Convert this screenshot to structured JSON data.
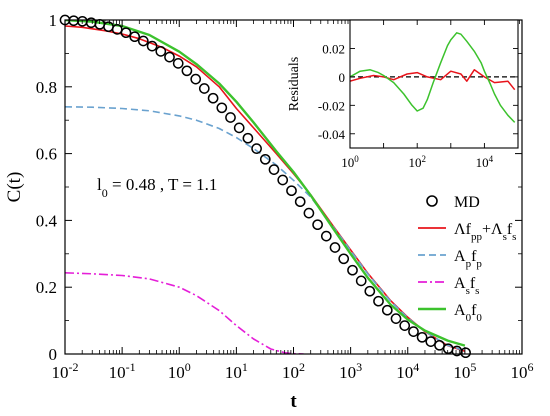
{
  "chart_data": [
    {
      "type": "line",
      "x_scale": "log",
      "xlabel": "t",
      "ylabel": "C(t)",
      "xlim": [
        0.01,
        1000000
      ],
      "ylim": [
        0,
        1
      ],
      "xticks": [
        0.01,
        0.1,
        1,
        10,
        100,
        1000,
        10000,
        100000,
        1000000
      ],
      "xtick_base": [
        "10",
        "10",
        "10",
        "10",
        "10",
        "10",
        "10",
        "10",
        "10"
      ],
      "xtick_exp": [
        "-2",
        "-1",
        "0",
        "1",
        "2",
        "3",
        "4",
        "5",
        "6"
      ],
      "yticks": [
        0,
        0.2,
        0.4,
        0.6,
        0.8,
        1
      ],
      "ytick_labels": [
        "0",
        "0.2",
        "0.4",
        "0.6",
        "0.8",
        "1"
      ],
      "grid": false,
      "legend_position": "right",
      "annotation": {
        "main": "l",
        "sub": "0",
        "rest": " = 0.48 , T = 1.1"
      },
      "series": [
        {
          "key": "md",
          "name": "MD",
          "style": "circles",
          "color": "#000000",
          "x": [
            0.01,
            0.0142,
            0.0202,
            0.0287,
            0.0407,
            0.0578,
            0.0821,
            0.117,
            0.166,
            0.235,
            0.335,
            0.475,
            0.675,
            0.96,
            1.36,
            1.94,
            2.75,
            3.91,
            5.55,
            7.89,
            11.2,
            15.9,
            22.6,
            32.1,
            45.6,
            64.8,
            92.1,
            131,
            186,
            264,
            375,
            533,
            757,
            1080,
            1530,
            2170,
            3080,
            4380,
            6220,
            8840,
            12600,
            17800,
            25300,
            36000,
            51100,
            72600,
            103000
          ],
          "y": [
            1.0,
            0.998,
            0.996,
            0.992,
            0.987,
            0.98,
            0.972,
            0.962,
            0.95,
            0.937,
            0.922,
            0.906,
            0.889,
            0.87,
            0.848,
            0.823,
            0.795,
            0.766,
            0.737,
            0.708,
            0.677,
            0.646,
            0.615,
            0.583,
            0.552,
            0.521,
            0.489,
            0.456,
            0.422,
            0.387,
            0.353,
            0.319,
            0.285,
            0.251,
            0.219,
            0.188,
            0.158,
            0.131,
            0.106,
            0.085,
            0.067,
            0.05,
            0.037,
            0.026,
            0.016,
            0.009,
            0.004
          ]
        },
        {
          "key": "fit",
          "name_parts": [
            [
              "Λ",
              ""
            ],
            [
              "f",
              ""
            ],
            [
              "p",
              "sub"
            ],
            [
              "p",
              "sub"
            ],
            [
              "+Λ",
              ""
            ],
            [
              "s",
              "sub"
            ],
            [
              "f",
              ""
            ],
            [
              "s",
              "sub"
            ]
          ],
          "style": "solid",
          "color": "#e8141b",
          "x": [
            0.01,
            0.02,
            0.05,
            0.1,
            0.2,
            0.5,
            1,
            2,
            5,
            10,
            20,
            50,
            100,
            200,
            500,
            1000,
            2000,
            5000,
            10000,
            20000,
            50000,
            100000
          ],
          "y": [
            0.982,
            0.978,
            0.968,
            0.958,
            0.944,
            0.918,
            0.892,
            0.86,
            0.8,
            0.735,
            0.677,
            0.6,
            0.54,
            0.477,
            0.382,
            0.312,
            0.242,
            0.16,
            0.11,
            0.067,
            0.025,
            0.008
          ]
        },
        {
          "key": "ap",
          "name_parts": [
            [
              "A",
              ""
            ],
            [
              "p",
              "sub"
            ],
            [
              "f",
              ""
            ],
            [
              "p",
              "sub"
            ]
          ],
          "style": "dashed",
          "color": "#6aa2cf",
          "x": [
            0.01,
            0.03,
            0.1,
            0.3,
            1,
            2,
            5,
            10,
            20,
            50,
            100,
            200,
            500,
            1000,
            2000,
            5000,
            10000,
            20000,
            50000,
            100000
          ],
          "y": [
            0.74,
            0.739,
            0.735,
            0.728,
            0.713,
            0.7,
            0.675,
            0.648,
            0.615,
            0.566,
            0.52,
            0.47,
            0.38,
            0.31,
            0.24,
            0.158,
            0.108,
            0.068,
            0.026,
            0.01
          ]
        },
        {
          "key": "as",
          "name_parts": [
            [
              "A",
              ""
            ],
            [
              "s",
              "sub"
            ],
            [
              "f",
              ""
            ],
            [
              "s",
              "sub"
            ]
          ],
          "style": "dashdot",
          "color": "#e51fd8",
          "x": [
            0.01,
            0.03,
            0.1,
            0.3,
            1,
            2,
            5,
            10,
            20,
            40,
            70,
            100,
            150
          ],
          "y": [
            0.243,
            0.24,
            0.235,
            0.225,
            0.2,
            0.175,
            0.13,
            0.085,
            0.045,
            0.015,
            0.004,
            0.001,
            0.0
          ]
        },
        {
          "key": "a0",
          "name_parts": [
            [
              "A",
              ""
            ],
            [
              "0",
              "sub"
            ],
            [
              "f",
              ""
            ],
            [
              "0",
              "sub"
            ]
          ],
          "style": "solid",
          "color": "#3cc22d",
          "x": [
            0.01,
            0.03,
            0.1,
            0.3,
            1,
            2,
            5,
            10,
            20,
            50,
            100,
            200,
            500,
            1000,
            2000,
            5000,
            10000,
            20000,
            50000,
            100000
          ],
          "y": [
            1.0,
            0.995,
            0.982,
            0.955,
            0.905,
            0.868,
            0.81,
            0.755,
            0.693,
            0.607,
            0.545,
            0.475,
            0.375,
            0.3,
            0.228,
            0.148,
            0.103,
            0.07,
            0.04,
            0.025
          ]
        }
      ]
    },
    {
      "type": "line",
      "x_scale": "log",
      "ylabel": "Residuals",
      "xlim": [
        1,
        100000
      ],
      "ylim": [
        -0.05,
        0.04
      ],
      "xticks": [
        1,
        100,
        10000
      ],
      "xtick_base": [
        "10",
        "10",
        "10"
      ],
      "xtick_exp": [
        "0",
        "2",
        "4"
      ],
      "yticks": [
        -0.04,
        -0.02,
        0,
        0.02
      ],
      "ytick_labels": [
        "-0.04",
        "-0.02",
        "0",
        "0.02"
      ],
      "zero_line": true,
      "series": [
        {
          "key": "res_red",
          "color": "#e8141b",
          "style": "solid",
          "x": [
            1,
            2,
            5,
            10,
            20,
            50,
            100,
            200,
            500,
            1000,
            2000,
            3000,
            5000,
            10000,
            20000,
            50000,
            80000
          ],
          "y": [
            -0.003,
            -0.001,
            0.001,
            0.0,
            -0.002,
            0.002,
            0.003,
            0.0,
            -0.002,
            0.004,
            0.002,
            -0.003,
            0.005,
            0.0,
            -0.004,
            -0.003,
            -0.009
          ]
        },
        {
          "key": "res_green",
          "color": "#3cc22d",
          "style": "solid",
          "x": [
            1,
            2,
            4,
            7,
            10,
            20,
            40,
            70,
            100,
            150,
            200,
            300,
            500,
            800,
            1000,
            1500,
            2000,
            3000,
            5000,
            8000,
            10000,
            15000,
            20000,
            30000,
            50000,
            80000
          ],
          "y": [
            0.0,
            0.004,
            0.005,
            0.003,
            0.001,
            -0.004,
            -0.012,
            -0.02,
            -0.024,
            -0.022,
            -0.016,
            -0.004,
            0.01,
            0.022,
            0.026,
            0.031,
            0.03,
            0.025,
            0.018,
            0.01,
            0.004,
            -0.005,
            -0.012,
            -0.02,
            -0.027,
            -0.032
          ]
        }
      ]
    }
  ]
}
